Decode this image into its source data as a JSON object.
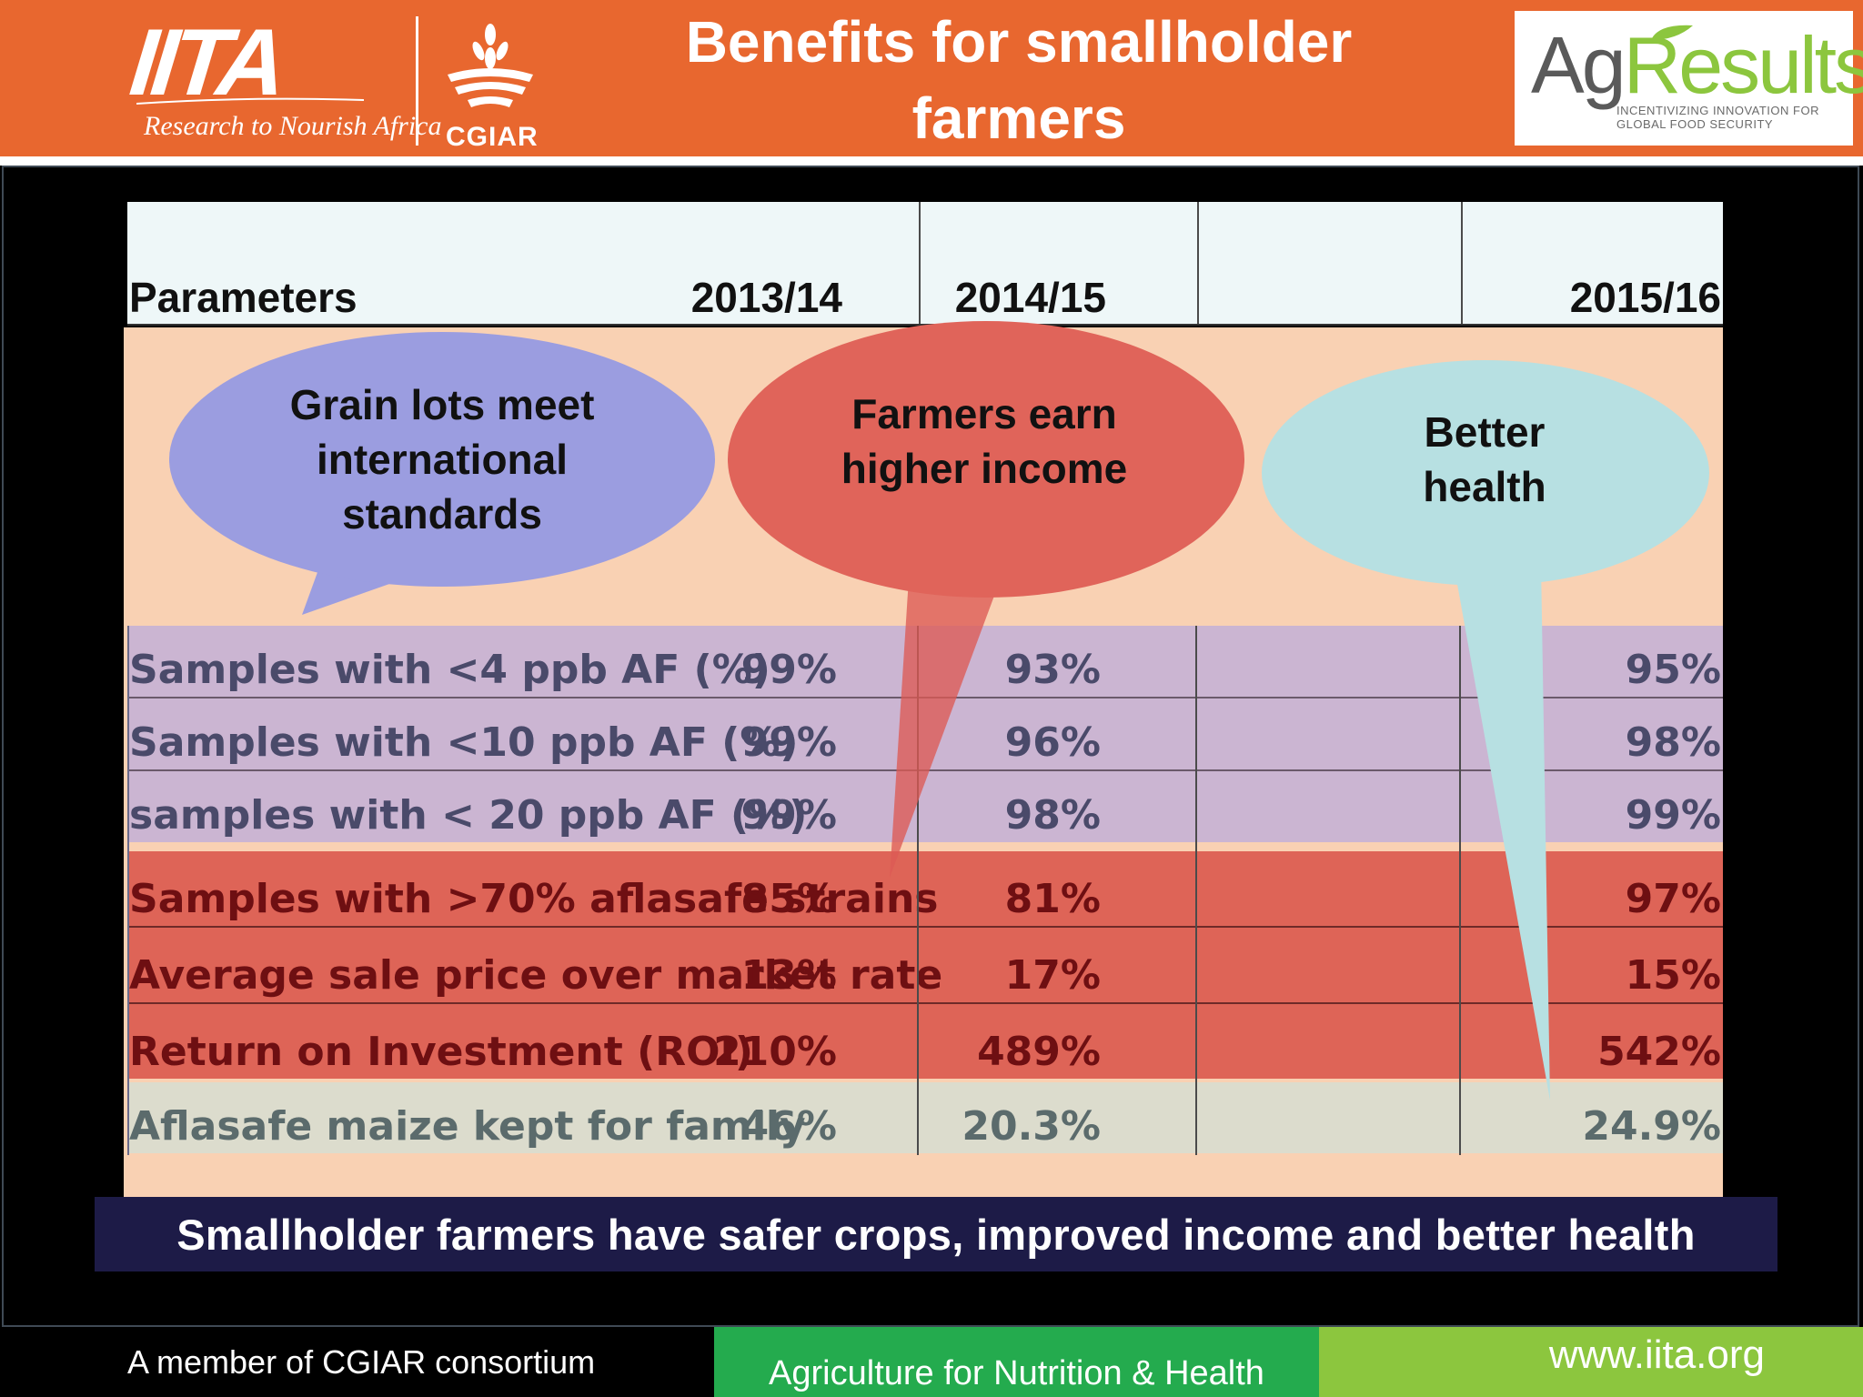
{
  "header": {
    "title": "Benefits for smallholder farmers",
    "iita_logo": {
      "name": "IITA",
      "tagline": "Research to Nourish Africa"
    },
    "cgiar_logo": {
      "name": "CGIAR"
    },
    "agresults_logo": {
      "name_part1": "Ag",
      "name_part2": "Results",
      "tagline": "INCENTIVIZING INNOVATION FOR GLOBAL FOOD SECURITY"
    }
  },
  "table": {
    "columns": [
      "Parameters",
      "2013/14",
      "2014/15",
      "2015/16"
    ],
    "rows": [
      {
        "label": "Samples  with <4 ppb AF (%)",
        "values": [
          "99%",
          "93%",
          "95%"
        ],
        "group": "standards"
      },
      {
        "label": "Samples with <10  ppb AF (%)",
        "values": [
          "99%",
          "96%",
          "98%"
        ],
        "group": "standards"
      },
      {
        "label": "samples with < 20  ppb AF (%)",
        "values": [
          "99%",
          "98%",
          "99%"
        ],
        "group": "standards"
      },
      {
        "label": "Samples with >70% aflasafe strains",
        "values": [
          "85%",
          "81%",
          "97%"
        ],
        "group": "income"
      },
      {
        "label": "Average sale price over market rate",
        "values": [
          "13%",
          "17%",
          "15%"
        ],
        "group": "income"
      },
      {
        "label": "Return on Investment (ROI)",
        "values": [
          "210%",
          "489%",
          "542%"
        ],
        "group": "income"
      },
      {
        "label": "Aflasafe maize kept for family",
        "values": [
          "46%",
          "20.3%",
          "24.9%"
        ],
        "group": "health"
      }
    ]
  },
  "callouts": {
    "standards": "Grain lots meet international standards",
    "income": "Farmers earn higher income",
    "health": "Better health"
  },
  "colors": {
    "header_bg": "#e8672f",
    "standards": "#9b9de0",
    "income": "#e0645a",
    "health": "#b7e0e2",
    "summary_bg": "#1d1b47"
  },
  "summary": "Smallholder farmers have safer crops, improved income and better health",
  "footer": {
    "left": "A member of CGIAR consortium",
    "center": "Agriculture for Nutrition & Health",
    "right": "www.iita.org"
  }
}
